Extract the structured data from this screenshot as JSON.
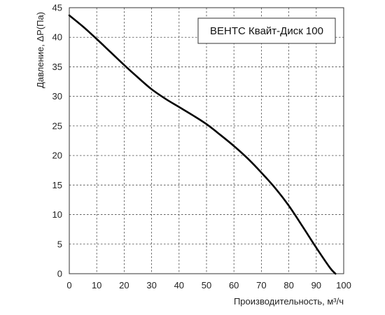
{
  "chart_data": {
    "type": "line",
    "title": "",
    "xlabel": "Производительность, м³/ч",
    "ylabel": "Давление, ΔР(Па)",
    "xlim": [
      0,
      100
    ],
    "ylim": [
      0,
      45
    ],
    "xticks": [
      0,
      10,
      20,
      30,
      40,
      50,
      60,
      70,
      80,
      90,
      100
    ],
    "yticks": [
      0,
      5,
      10,
      15,
      20,
      25,
      30,
      35,
      40,
      45
    ],
    "grid": true,
    "legend": "top-right",
    "series": [
      {
        "name": "ВЕНТС Квайт-Диск 100",
        "color": "#000000",
        "x": [
          0,
          5,
          10,
          15,
          20,
          25,
          30,
          35,
          40,
          45,
          50,
          55,
          60,
          65,
          70,
          75,
          80,
          85,
          90,
          95,
          97
        ],
        "y": [
          43.7,
          41.8,
          39.7,
          37.5,
          35.3,
          33.2,
          31.2,
          29.6,
          28.2,
          26.8,
          25.3,
          23.5,
          21.6,
          19.5,
          17.1,
          14.5,
          11.5,
          8.0,
          4.4,
          1.0,
          0
        ]
      }
    ]
  }
}
